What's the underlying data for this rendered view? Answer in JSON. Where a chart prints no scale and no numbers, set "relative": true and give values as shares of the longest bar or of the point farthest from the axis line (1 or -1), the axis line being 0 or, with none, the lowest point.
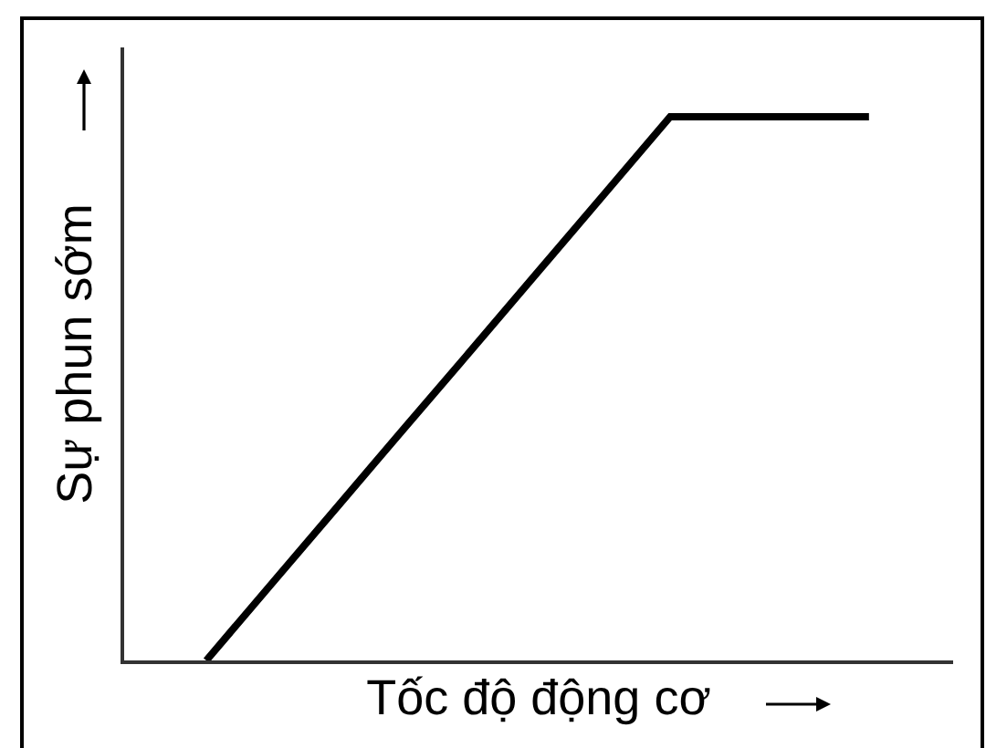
{
  "chart_data": {
    "type": "line",
    "xlabel": "Tốc độ động cơ",
    "ylabel": "Sự phun sớm",
    "categories": [
      null,
      null,
      null,
      null,
      null,
      null,
      null,
      null,
      null,
      null,
      null
    ],
    "series": [
      {
        "color": "#000000",
        "values": [
          0,
          0.143,
          0.286,
          0.429,
          0.571,
          0.714,
          0.857,
          1,
          1,
          1,
          1
        ]
      }
    ],
    "relative": true,
    "tick_labels": false,
    "line_style": "solid"
  }
}
